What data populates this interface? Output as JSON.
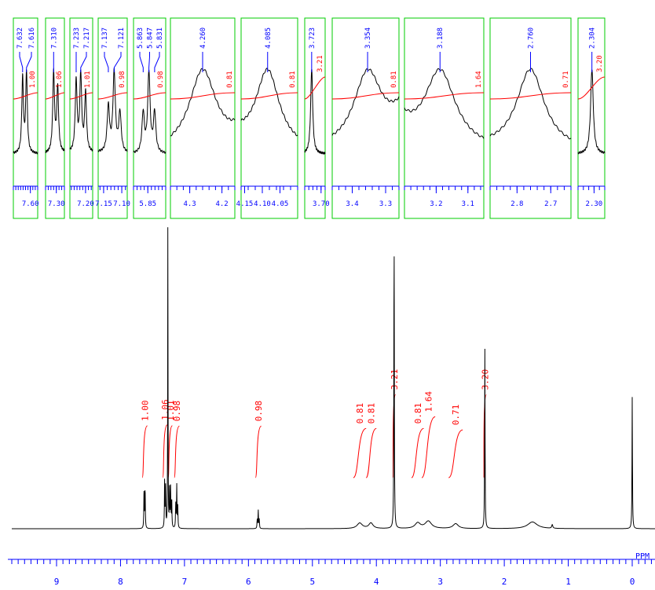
{
  "chart_data": {
    "type": "line",
    "title": "",
    "xlabel": "PPM",
    "ylabel": "",
    "x_reversed": true,
    "xlim": [
      9.7,
      -0.4
    ],
    "axis": {
      "major_ticks": [
        9,
        8,
        7,
        6,
        5,
        4,
        3,
        2,
        1,
        0
      ],
      "major_labels": [
        "9",
        "8",
        "7",
        "6",
        "5",
        "4",
        "3",
        "2",
        "1",
        "0"
      ],
      "unit_label": "PPM"
    },
    "colors": {
      "spectrum": "#000000",
      "integral": "#ff0000",
      "peak_label": "#0000ff",
      "inset_frame": "#00cc00",
      "axis": "#0000ff"
    },
    "peaks": [
      {
        "ppm": 7.632,
        "height": 0.13,
        "width": 0.004
      },
      {
        "ppm": 7.616,
        "height": 0.14,
        "width": 0.004
      },
      {
        "ppm": 7.31,
        "height": 0.16,
        "width": 0.004
      },
      {
        "ppm": 7.295,
        "height": 0.13,
        "width": 0.004
      },
      {
        "ppm": 7.26,
        "height": 1.0,
        "width": 0.003
      },
      {
        "ppm": 7.233,
        "height": 0.12,
        "width": 0.004
      },
      {
        "ppm": 7.217,
        "height": 0.13,
        "width": 0.004
      },
      {
        "ppm": 7.2,
        "height": 0.1,
        "width": 0.004
      },
      {
        "ppm": 7.137,
        "height": 0.08,
        "width": 0.004
      },
      {
        "ppm": 7.121,
        "height": 0.14,
        "width": 0.004
      },
      {
        "ppm": 7.105,
        "height": 0.07,
        "width": 0.004
      },
      {
        "ppm": 5.863,
        "height": 0.03,
        "width": 0.004
      },
      {
        "ppm": 5.847,
        "height": 0.06,
        "width": 0.004
      },
      {
        "ppm": 5.831,
        "height": 0.03,
        "width": 0.004
      },
      {
        "ppm": 4.26,
        "height": 0.018,
        "width": 0.05
      },
      {
        "ppm": 4.085,
        "height": 0.018,
        "width": 0.04
      },
      {
        "ppm": 3.723,
        "height": 1.0,
        "width": 0.004
      },
      {
        "ppm": 3.354,
        "height": 0.018,
        "width": 0.05
      },
      {
        "ppm": 3.188,
        "height": 0.024,
        "width": 0.06
      },
      {
        "ppm": 2.76,
        "height": 0.016,
        "width": 0.05
      },
      {
        "ppm": 2.304,
        "height": 0.59,
        "width": 0.004
      },
      {
        "ppm": 1.56,
        "height": 0.022,
        "width": 0.09
      },
      {
        "ppm": 1.25,
        "height": 0.012,
        "width": 0.01
      },
      {
        "ppm": 0.0,
        "height": 0.43,
        "width": 0.004
      }
    ],
    "integrals": [
      {
        "label": "1.00",
        "from": 7.66,
        "to": 7.58
      },
      {
        "label": "1.06",
        "from": 7.34,
        "to": 7.27
      },
      {
        "label": "1.01",
        "from": 7.255,
        "to": 7.19
      },
      {
        "label": "0.98",
        "from": 7.16,
        "to": 7.08
      },
      {
        "label": "0.98",
        "from": 5.89,
        "to": 5.8
      },
      {
        "label": "0.81",
        "from": 4.36,
        "to": 4.16
      },
      {
        "label": "0.81",
        "from": 4.16,
        "to": 4.0
      },
      {
        "label": "3.21",
        "from": 3.74,
        "to": 3.7
      },
      {
        "label": "0.81",
        "from": 3.45,
        "to": 3.26
      },
      {
        "label": "1.64",
        "from": 3.29,
        "to": 3.08
      },
      {
        "label": "0.71",
        "from": 2.87,
        "to": 2.65
      },
      {
        "label": "3.20",
        "from": 2.32,
        "to": 2.28
      }
    ],
    "insets": [
      {
        "ppm_from": 7.67,
        "ppm_to": 7.57,
        "ticks": [
          "7.60"
        ],
        "peak_labels": [
          "7.632",
          "7.616"
        ],
        "integral_label": "1.00"
      },
      {
        "ppm_from": 7.34,
        "ppm_to": 7.27,
        "ticks": [
          "7.30"
        ],
        "peak_labels": [
          "7.310"
        ],
        "integral_label": "1.06"
      },
      {
        "ppm_from": 7.255,
        "ppm_to": 7.175,
        "ticks": [
          "7.20"
        ],
        "peak_labels": [
          "7.233",
          "7.217"
        ],
        "integral_label": "1.01"
      },
      {
        "ppm_from": 7.165,
        "ppm_to": 7.085,
        "ticks": [
          "7.15",
          "7.10"
        ],
        "peak_labels": [
          "7.137",
          "7.121"
        ],
        "integral_label": "0.98"
      },
      {
        "ppm_from": 5.89,
        "ppm_to": 5.8,
        "ticks": [
          "5.85"
        ],
        "peak_labels": [
          "5.863",
          "5.847",
          "5.831"
        ],
        "integral_label": "0.98"
      },
      {
        "ppm_from": 4.36,
        "ppm_to": 4.16,
        "ticks": [
          "4.3",
          "4.2"
        ],
        "peak_labels": [
          "4.260"
        ],
        "integral_label": "0.81"
      },
      {
        "ppm_from": 4.16,
        "ppm_to": 4.0,
        "ticks": [
          "4.15",
          "4.10",
          "4.05"
        ],
        "peak_labels": [
          "4.085"
        ],
        "integral_label": "0.81"
      },
      {
        "ppm_from": 3.74,
        "ppm_to": 3.69,
        "ticks": [
          "3.70"
        ],
        "peak_labels": [
          "3.723"
        ],
        "integral_label": "3.21"
      },
      {
        "ppm_from": 3.46,
        "ppm_to": 3.26,
        "ticks": [
          "3.4",
          "3.3"
        ],
        "peak_labels": [
          "3.354"
        ],
        "integral_label": "0.81"
      },
      {
        "ppm_from": 3.3,
        "ppm_to": 3.05,
        "ticks": [
          "3.2",
          "3.1"
        ],
        "peak_labels": [
          "3.188"
        ],
        "integral_label": "1.64"
      },
      {
        "ppm_from": 2.88,
        "ppm_to": 2.64,
        "ticks": [
          "2.8",
          "2.7"
        ],
        "peak_labels": [
          "2.760"
        ],
        "integral_label": "0.71"
      },
      {
        "ppm_from": 2.33,
        "ppm_to": 2.28,
        "ticks": [
          "2.30"
        ],
        "peak_labels": [
          "2.304"
        ],
        "integral_label": "3.20"
      }
    ]
  }
}
